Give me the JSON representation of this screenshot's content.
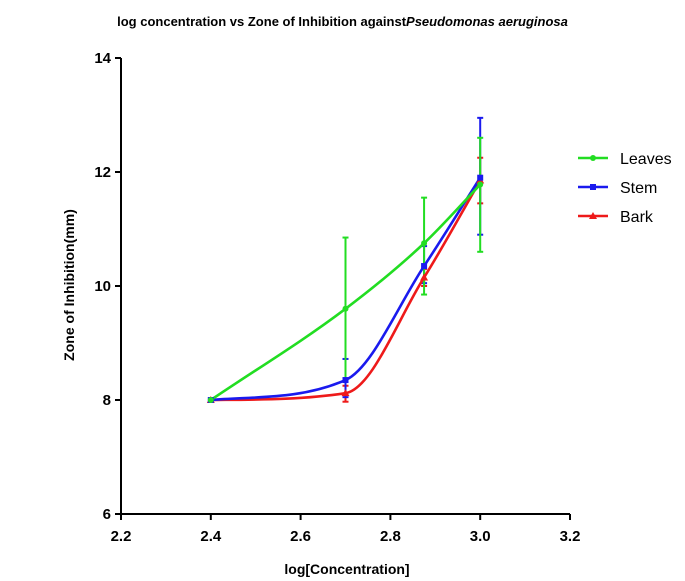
{
  "chart_data": {
    "type": "line",
    "title": "log concentration vs Zone of Inhibition against",
    "title_species": "Pseudomonas aeruginosa",
    "xlabel": "log[Concentration]",
    "ylabel": "Zone of Inhibition(mm)",
    "xlim": [
      2.2,
      3.2
    ],
    "ylim": [
      6,
      14
    ],
    "xticks": [
      2.2,
      2.4,
      2.6,
      2.8,
      3.0,
      3.2
    ],
    "xtick_labels": [
      "2.2",
      "2.4",
      "2.6",
      "2.8",
      "3.0",
      "3.2"
    ],
    "yticks": [
      6,
      8,
      10,
      12,
      14
    ],
    "ytick_labels": [
      "6",
      "8",
      "10",
      "12",
      "14"
    ],
    "grid": false,
    "legend_position": "right",
    "x": [
      2.4,
      2.7,
      2.875,
      3.0
    ],
    "series": [
      {
        "name": "Leaves",
        "color": "#22dd22",
        "marker": "circle",
        "values": [
          8.0,
          9.6,
          10.75,
          11.78
        ],
        "err_low": [
          0,
          8.35,
          9.85,
          10.6
        ],
        "err_high": [
          0,
          10.85,
          11.55,
          12.6
        ]
      },
      {
        "name": "Stem",
        "color": "#1a1aee",
        "marker": "square",
        "values": [
          8.0,
          8.35,
          10.35,
          11.9
        ],
        "err_low": [
          0,
          8.05,
          10.05,
          10.9
        ],
        "err_high": [
          0,
          8.72,
          10.7,
          12.95
        ]
      },
      {
        "name": "Bark",
        "color": "#ee1a1a",
        "marker": "triangle",
        "values": [
          8.0,
          8.12,
          10.15,
          11.85
        ],
        "err_low": [
          0,
          7.97,
          10.0,
          11.45
        ],
        "err_high": [
          0,
          8.25,
          10.3,
          12.25
        ]
      }
    ]
  }
}
